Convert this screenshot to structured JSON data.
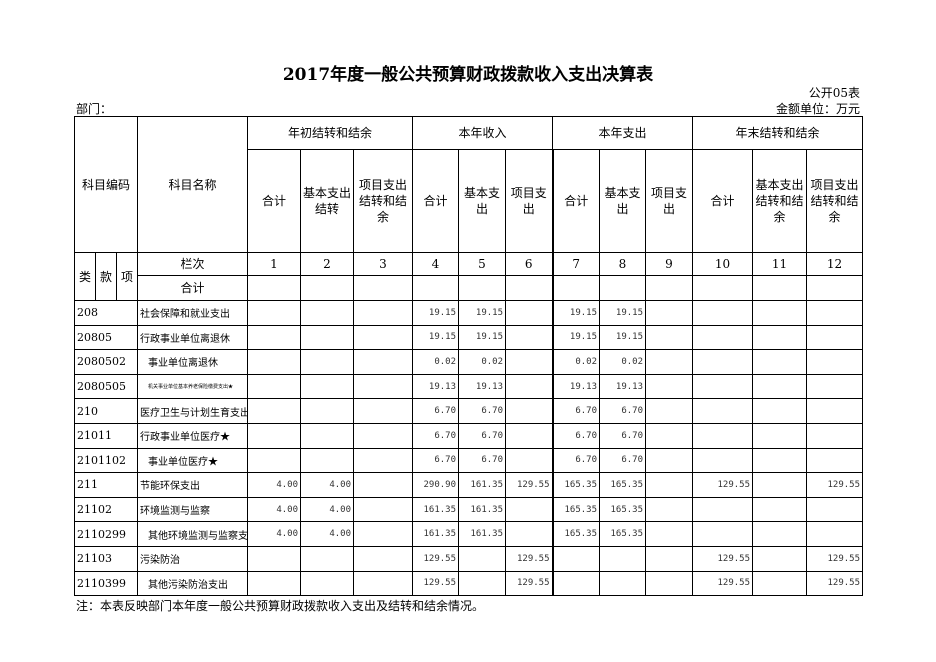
{
  "title": "2017年度一般公共预算财政拨款收入支出决算表",
  "form_no": "公开05表",
  "department_label": "部门：",
  "unit_label": "金额单位：万元",
  "headers": {
    "code": "科目编码",
    "name": "科目名称",
    "groups": [
      "年初结转和结余",
      "本年收入",
      "本年支出",
      "年末结转和结余"
    ],
    "sub": [
      "合计",
      "基本支出结转",
      "项目支出结转和结余",
      "合计",
      "基本支出",
      "项目支出",
      "合计",
      "基本支出",
      "项目支出",
      "合计",
      "基本支出结转和结余",
      "项目支出结转和结余"
    ],
    "lei": "类",
    "kuan": "款",
    "xiang": "项",
    "lanci": "栏次",
    "lanci_nums": [
      "1",
      "2",
      "3",
      "4",
      "5",
      "6",
      "7",
      "8",
      "9",
      "10",
      "11",
      "12"
    ],
    "total": "合计"
  },
  "rows": [
    {
      "code": "208",
      "name": "社会保障和就业支出",
      "indent": false,
      "v": [
        "",
        "",
        "",
        "19.15",
        "19.15",
        "",
        "19.15",
        "19.15",
        "",
        "",
        "",
        ""
      ]
    },
    {
      "code": "20805",
      "name": "行政事业单位离退休",
      "indent": false,
      "v": [
        "",
        "",
        "",
        "19.15",
        "19.15",
        "",
        "19.15",
        "19.15",
        "",
        "",
        "",
        ""
      ]
    },
    {
      "code": "2080502",
      "name": "事业单位离退休",
      "indent": true,
      "v": [
        "",
        "",
        "",
        "0.02",
        "0.02",
        "",
        "0.02",
        "0.02",
        "",
        "",
        "",
        ""
      ]
    },
    {
      "code": "2080505",
      "name": "机关事业单位基本养老保险缴费支出★",
      "indent": true,
      "tiny": true,
      "v": [
        "",
        "",
        "",
        "19.13",
        "19.13",
        "",
        "19.13",
        "19.13",
        "",
        "",
        "",
        ""
      ]
    },
    {
      "code": "210",
      "name": "医疗卫生与计划生育支出",
      "indent": false,
      "v": [
        "",
        "",
        "",
        "6.70",
        "6.70",
        "",
        "6.70",
        "6.70",
        "",
        "",
        "",
        ""
      ]
    },
    {
      "code": "21011",
      "name": "行政事业单位医疗★",
      "indent": false,
      "v": [
        "",
        "",
        "",
        "6.70",
        "6.70",
        "",
        "6.70",
        "6.70",
        "",
        "",
        "",
        ""
      ]
    },
    {
      "code": "2101102",
      "name": "事业单位医疗★",
      "indent": true,
      "v": [
        "",
        "",
        "",
        "6.70",
        "6.70",
        "",
        "6.70",
        "6.70",
        "",
        "",
        "",
        ""
      ]
    },
    {
      "code": "211",
      "name": "节能环保支出",
      "indent": false,
      "v": [
        "4.00",
        "4.00",
        "",
        "290.90",
        "161.35",
        "129.55",
        "165.35",
        "165.35",
        "",
        "129.55",
        "",
        "129.55"
      ]
    },
    {
      "code": "21102",
      "name": "环境监测与监察",
      "indent": false,
      "v": [
        "4.00",
        "4.00",
        "",
        "161.35",
        "161.35",
        "",
        "165.35",
        "165.35",
        "",
        "",
        "",
        ""
      ]
    },
    {
      "code": "2110299",
      "name": "其他环境监测与监察支出",
      "indent": true,
      "v": [
        "4.00",
        "4.00",
        "",
        "161.35",
        "161.35",
        "",
        "165.35",
        "165.35",
        "",
        "",
        "",
        ""
      ]
    },
    {
      "code": "21103",
      "name": "污染防治",
      "indent": false,
      "v": [
        "",
        "",
        "",
        "129.55",
        "",
        "129.55",
        "",
        "",
        "",
        "129.55",
        "",
        "129.55"
      ]
    },
    {
      "code": "2110399",
      "name": "其他污染防治支出",
      "indent": true,
      "v": [
        "",
        "",
        "",
        "129.55",
        "",
        "129.55",
        "",
        "",
        "",
        "129.55",
        "",
        "129.55"
      ]
    }
  ],
  "note": "注：本表反映部门本年度一般公共预算财政拨款收入支出及结转和结余情况。"
}
